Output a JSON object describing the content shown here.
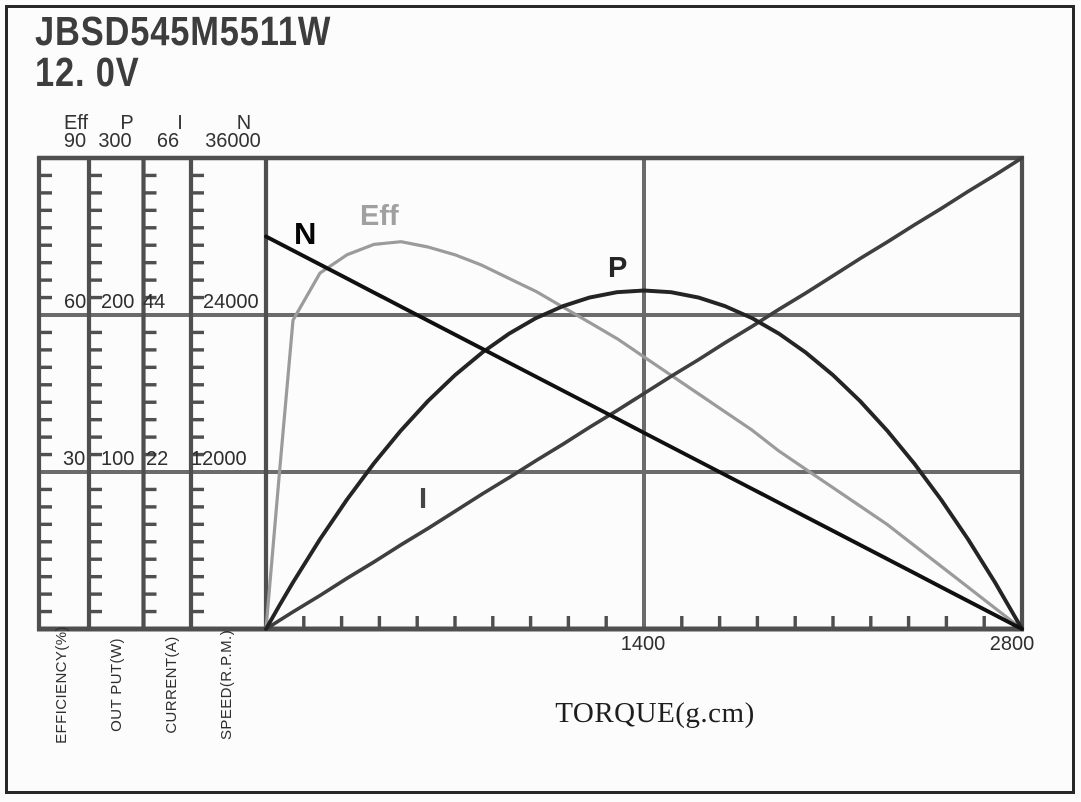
{
  "page": {
    "background": "#fcfcfc",
    "frame_color": "#282828"
  },
  "header": {
    "model": "JBSD545M5511W",
    "voltage": "12. 0V"
  },
  "scales": [
    {
      "name": "Eff",
      "max": "90",
      "grid1": "60",
      "grid2": "30",
      "unit_label": "EFFICIENCY(%)"
    },
    {
      "name": "P",
      "max": "300",
      "grid1": "200",
      "grid2": "100",
      "unit_label": "OUT PUT(W)"
    },
    {
      "name": "I",
      "max": "66",
      "grid1": "44",
      "grid2": "22",
      "unit_label": "CURRENT(A)"
    },
    {
      "name": "N",
      "max": "36000",
      "grid1": "24000",
      "grid2": "12000",
      "unit_label": "SPEED(R.P.M.)"
    }
  ],
  "x_axis": {
    "label": "TORQUE(g.cm)",
    "tick_mid": "1400",
    "tick_end": "2800"
  },
  "curve_labels": {
    "n": "N",
    "eff": "Eff",
    "p": "P",
    "i": "I"
  },
  "chart_data": {
    "type": "line",
    "title": "JBSD545M5511W 12.0V motor performance curves",
    "xlabel": "TORQUE(g.cm)",
    "x_range": [
      0,
      2800
    ],
    "x_ticks": [
      1400,
      2800
    ],
    "grid": true,
    "y_axes": [
      {
        "name": "Eff",
        "label": "EFFICIENCY(%)",
        "range": [
          0,
          90
        ],
        "ticks": [
          90,
          60,
          30
        ]
      },
      {
        "name": "P",
        "label": "OUT PUT(W)",
        "range": [
          0,
          300
        ],
        "ticks": [
          300,
          200,
          100
        ]
      },
      {
        "name": "I",
        "label": "CURRENT(A)",
        "range": [
          0,
          66
        ],
        "ticks": [
          66,
          44,
          22
        ]
      },
      {
        "name": "N",
        "label": "SPEED(R.P.M.)",
        "range": [
          0,
          36000
        ],
        "ticks": [
          36000,
          24000,
          12000
        ]
      }
    ],
    "x": [
      0,
      50,
      100,
      200,
      300,
      400,
      500,
      600,
      700,
      800,
      900,
      1000,
      1100,
      1200,
      1300,
      1400,
      1500,
      1600,
      1700,
      1800,
      1900,
      2000,
      2100,
      2200,
      2300,
      2400,
      2500,
      2600,
      2700,
      2800
    ],
    "series": [
      {
        "name": "N",
        "axis": "N",
        "color": "#101010",
        "values": [
          30000,
          29464,
          28929,
          27857,
          26786,
          25714,
          24643,
          23571,
          22500,
          21429,
          20357,
          19286,
          18214,
          17143,
          16071,
          15000,
          13929,
          12857,
          11786,
          10714,
          9643,
          8571,
          7500,
          6429,
          5357,
          4286,
          3214,
          2143,
          1071,
          0
        ]
      },
      {
        "name": "Eff",
        "axis": "Eff",
        "color": "#9b9b9b",
        "values": [
          0,
          30,
          59,
          68,
          71.5,
          73.5,
          74,
          73,
          71.5,
          69.5,
          67,
          64.5,
          61.5,
          58.5,
          55.5,
          52,
          48.5,
          45,
          41.5,
          38,
          34,
          30.5,
          27,
          23.5,
          20,
          16,
          12,
          8,
          4,
          0
        ]
      },
      {
        "name": "P",
        "axis": "P",
        "color": "#242424",
        "values": [
          0,
          15.1,
          29.7,
          57.2,
          82.5,
          105.6,
          126.5,
          145.2,
          161.7,
          176,
          188.1,
          198,
          205.7,
          211.2,
          214.5,
          215.6,
          214.5,
          211.2,
          205.7,
          198,
          188.1,
          176,
          161.7,
          145.2,
          126.5,
          105.6,
          82.5,
          57.2,
          29.7,
          0
        ]
      },
      {
        "name": "I",
        "axis": "I",
        "color": "#3f3f3f",
        "values": [
          0,
          1.2,
          2.4,
          4.7,
          7.1,
          9.4,
          11.8,
          14.1,
          16.5,
          18.9,
          21.2,
          23.6,
          25.9,
          28.3,
          30.6,
          33,
          35.4,
          37.7,
          40.1,
          42.4,
          44.8,
          47.1,
          49.5,
          51.9,
          54.2,
          56.6,
          58.9,
          61.3,
          63.6,
          66
        ]
      }
    ]
  }
}
